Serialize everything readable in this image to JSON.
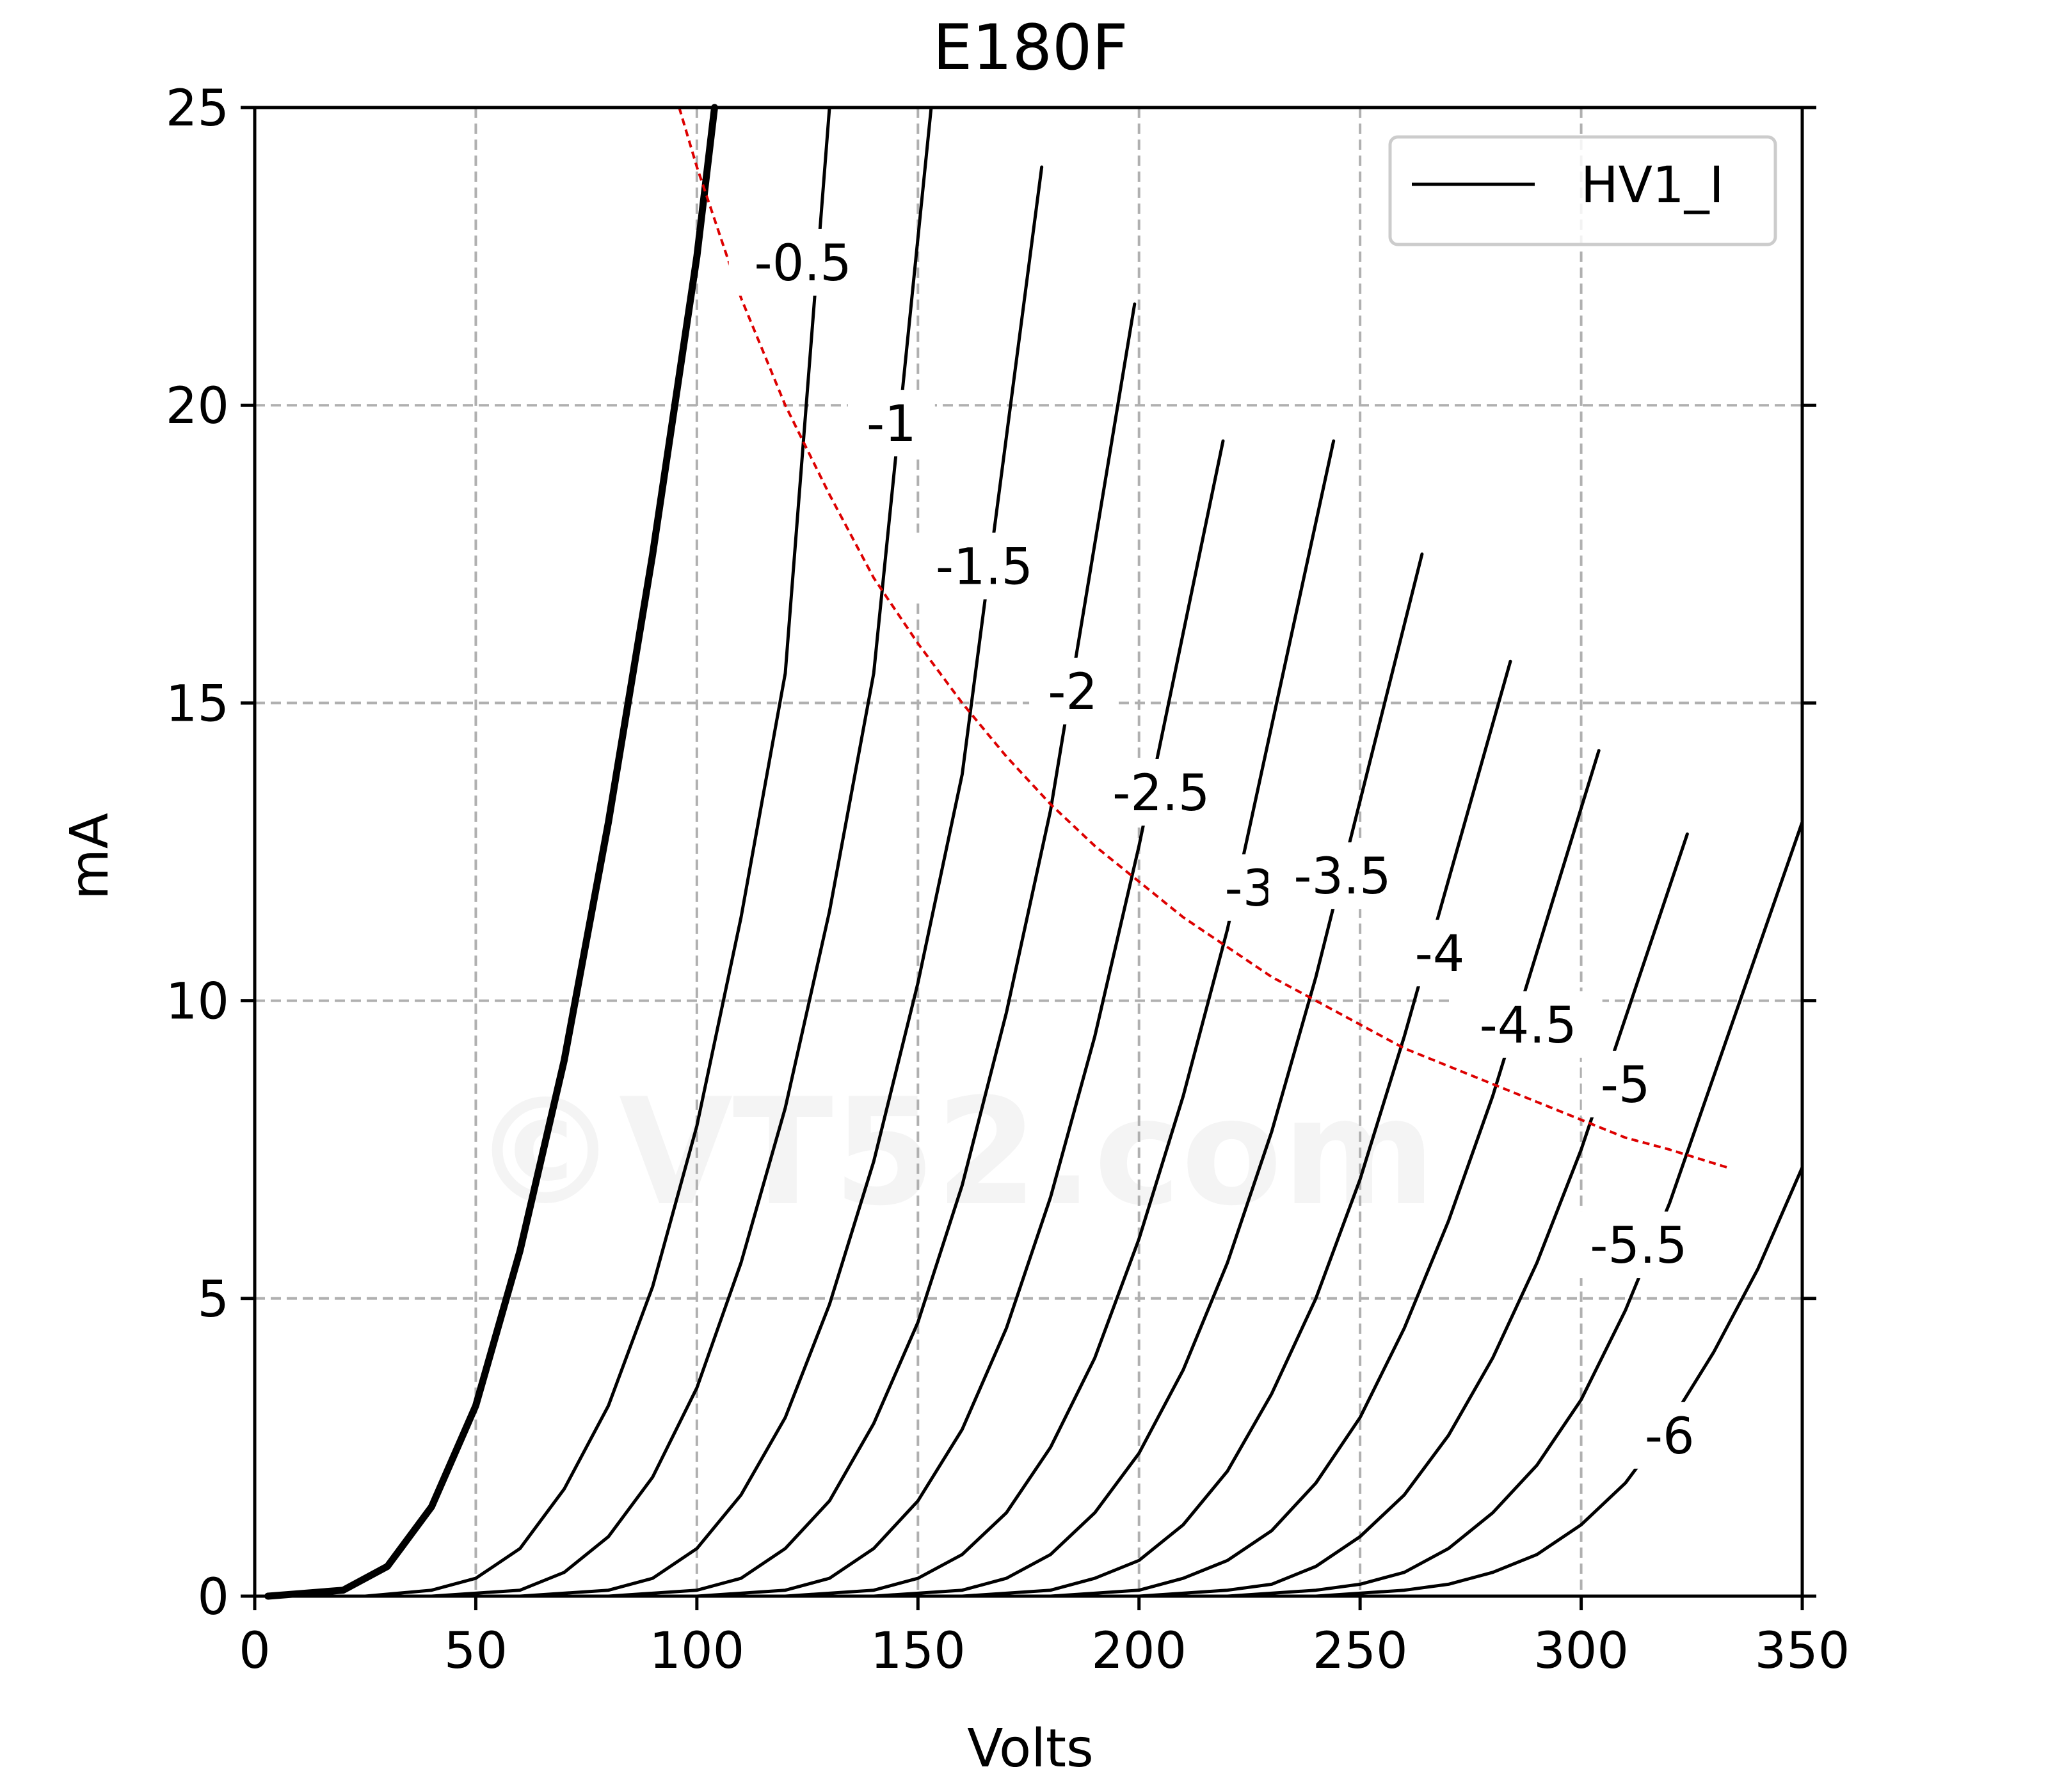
{
  "chart_data": {
    "type": "line",
    "title": "E180F",
    "xlabel": "Volts",
    "ylabel": "mA",
    "xlim": [
      0,
      350
    ],
    "ylim": [
      0,
      25
    ],
    "x_ticks": [
      "0",
      "50",
      "100",
      "150",
      "200",
      "250",
      "300",
      "350"
    ],
    "y_ticks": [
      "0",
      "5",
      "10",
      "15",
      "20",
      "25"
    ],
    "grid": true,
    "legend": {
      "entries": [
        "HV1_I"
      ],
      "position": "top-right"
    },
    "watermark": "©VT52.com",
    "series_color": "#000000",
    "limit_curve_color": "#dd0000",
    "series": [
      {
        "label": "",
        "bold": true,
        "x": [
          3,
          20,
          30,
          40,
          50,
          60,
          70,
          80,
          90,
          100,
          104
        ],
        "y": [
          0,
          0.1,
          0.5,
          1.5,
          3.2,
          5.8,
          9.0,
          13.0,
          17.5,
          22.5,
          25
        ]
      },
      {
        "label": "-0.5",
        "x": [
          25,
          40,
          50,
          60,
          70,
          80,
          90,
          100,
          110,
          120,
          130
        ],
        "y": [
          0,
          0.1,
          0.3,
          0.8,
          1.8,
          3.2,
          5.2,
          7.9,
          11.4,
          15.5,
          25
        ]
      },
      {
        "label": "-1",
        "x": [
          40,
          60,
          70,
          80,
          90,
          100,
          110,
          120,
          130,
          140,
          153
        ],
        "y": [
          0,
          0.1,
          0.4,
          1.0,
          2.0,
          3.5,
          5.6,
          8.2,
          11.5,
          15.5,
          25
        ]
      },
      {
        "label": "-1.5",
        "x": [
          60,
          80,
          90,
          100,
          110,
          120,
          130,
          140,
          150,
          160,
          178
        ],
        "y": [
          0,
          0.1,
          0.3,
          0.8,
          1.7,
          3.0,
          4.9,
          7.3,
          10.3,
          13.8,
          24.0
        ]
      },
      {
        "label": "-2",
        "x": [
          80,
          100,
          110,
          120,
          130,
          140,
          150,
          160,
          170,
          180,
          199
        ],
        "y": [
          0,
          0.1,
          0.3,
          0.8,
          1.6,
          2.9,
          4.6,
          6.9,
          9.8,
          13.2,
          21.7
        ]
      },
      {
        "label": "-2.5",
        "x": [
          100,
          120,
          130,
          140,
          150,
          160,
          170,
          180,
          190,
          200,
          219
        ],
        "y": [
          0,
          0.1,
          0.3,
          0.8,
          1.6,
          2.8,
          4.5,
          6.7,
          9.4,
          12.6,
          19.4
        ]
      },
      {
        "label": "-3",
        "x": [
          120,
          140,
          150,
          160,
          170,
          180,
          190,
          200,
          210,
          220,
          244
        ],
        "y": [
          0,
          0.1,
          0.3,
          0.7,
          1.4,
          2.5,
          4.0,
          6.0,
          8.4,
          11.2,
          19.4
        ]
      },
      {
        "label": "-3.5",
        "x": [
          140,
          160,
          170,
          180,
          190,
          200,
          210,
          220,
          230,
          240,
          264
        ],
        "y": [
          0,
          0.1,
          0.3,
          0.7,
          1.4,
          2.4,
          3.8,
          5.6,
          7.8,
          10.4,
          17.5
        ]
      },
      {
        "label": "-4",
        "x": [
          160,
          180,
          190,
          200,
          210,
          220,
          230,
          240,
          250,
          260,
          284
        ],
        "y": [
          0,
          0.1,
          0.3,
          0.6,
          1.2,
          2.1,
          3.4,
          5.0,
          7.0,
          9.4,
          15.7
        ]
      },
      {
        "label": "-4.5",
        "x": [
          180,
          200,
          210,
          220,
          230,
          240,
          250,
          260,
          270,
          280,
          304
        ],
        "y": [
          0,
          0.1,
          0.3,
          0.6,
          1.1,
          1.9,
          3.0,
          4.5,
          6.3,
          8.4,
          14.2
        ]
      },
      {
        "label": "-5",
        "x": [
          200,
          220,
          230,
          240,
          250,
          260,
          270,
          280,
          290,
          300,
          324
        ],
        "y": [
          0,
          0.1,
          0.2,
          0.5,
          1.0,
          1.7,
          2.7,
          4.0,
          5.6,
          7.5,
          12.8
        ]
      },
      {
        "label": "-5.5",
        "x": [
          220,
          240,
          250,
          260,
          270,
          280,
          290,
          300,
          310,
          320,
          350
        ],
        "y": [
          0,
          0.1,
          0.2,
          0.4,
          0.8,
          1.4,
          2.2,
          3.3,
          4.8,
          6.6,
          13.0
        ]
      },
      {
        "label": "-6",
        "x": [
          240,
          260,
          270,
          280,
          290,
          300,
          310,
          320,
          330,
          340,
          350
        ],
        "y": [
          0,
          0.1,
          0.2,
          0.4,
          0.7,
          1.2,
          1.9,
          2.9,
          4.1,
          5.5,
          7.2
        ]
      }
    ],
    "curve_labels": [
      {
        "text": "-0.5",
        "x": 124,
        "y": 22.4
      },
      {
        "text": "-1",
        "x": 144,
        "y": 19.7
      },
      {
        "text": "-1.5",
        "x": 165,
        "y": 17.3
      },
      {
        "text": "-2",
        "x": 185,
        "y": 15.2
      },
      {
        "text": "-2.5",
        "x": 205,
        "y": 13.5
      },
      {
        "text": "-3",
        "x": 225,
        "y": 11.9
      },
      {
        "text": "-3.5",
        "x": 246,
        "y": 12.1
      },
      {
        "text": "-4",
        "x": 268,
        "y": 10.8
      },
      {
        "text": "-4.5",
        "x": 288,
        "y": 9.6
      },
      {
        "text": "-5",
        "x": 310,
        "y": 8.6
      },
      {
        "text": "-5.5",
        "x": 313,
        "y": 5.9
      },
      {
        "text": "-6",
        "x": 320,
        "y": 2.7
      }
    ],
    "limit_curve": {
      "label": "",
      "x": [
        96,
        100,
        110,
        120,
        130,
        140,
        150,
        160,
        170,
        180,
        190,
        200,
        210,
        220,
        230,
        240,
        250,
        260,
        270,
        280,
        290,
        300,
        310,
        320,
        333
      ],
      "y": [
        25,
        24.0,
        21.8,
        20.0,
        18.5,
        17.1,
        16.0,
        15.0,
        14.1,
        13.3,
        12.6,
        12.0,
        11.4,
        10.9,
        10.4,
        10.0,
        9.6,
        9.2,
        8.9,
        8.6,
        8.3,
        8.0,
        7.7,
        7.5,
        7.2
      ]
    }
  }
}
